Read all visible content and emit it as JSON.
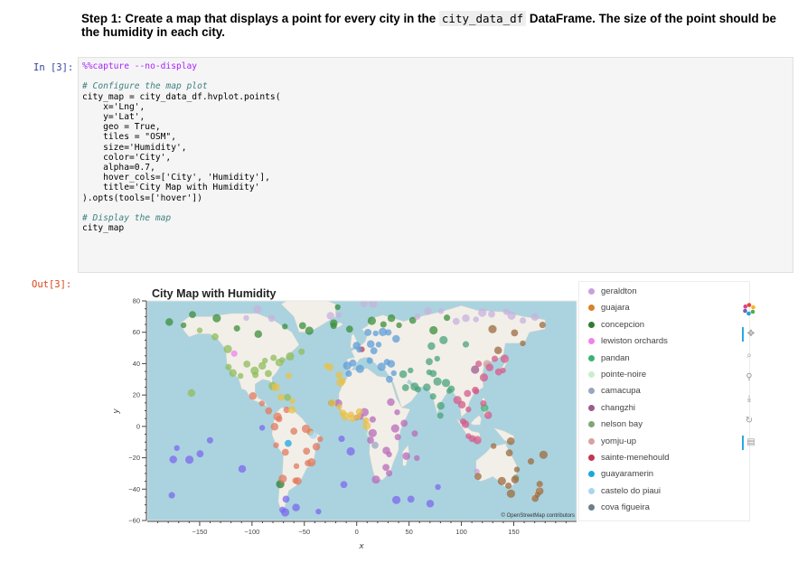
{
  "markdown": {
    "text_before": "Step 1: Create a map that displays a point for every city in the ",
    "code": "city_data_df",
    "text_after": " DataFrame. The size of the point should be the humidity in each city."
  },
  "input_prompt": "In [3]:",
  "output_prompt": "Out[3]:",
  "code_lines": {
    "l1": "%%capture --no-display",
    "l3": "# Configure the map plot",
    "l4": "city_map = city_data_df.hvplot.points(",
    "l5": "    x='Lng',",
    "l6": "    y='Lat',",
    "l7": "    geo = True,",
    "l8": "    tiles = \"OSM\",",
    "l9": "    size='Humidity',",
    "l10": "    color='City',",
    "l11": "    alpha=0.7,",
    "l12": "    hover_cols=['City', 'Humidity'],",
    "l13": "    title='City Map with Humidity'",
    "l14": ").opts(tools=['hover'])",
    "l16": "# Display the map",
    "l17": "city_map"
  },
  "chart_data": {
    "type": "scatter",
    "title": "City Map with Humidity",
    "xlabel": "x",
    "ylabel": "y",
    "xlim": [
      -200,
      210
    ],
    "ylim": [
      -60,
      80
    ],
    "xticks": [
      -150,
      -100,
      -50,
      0,
      50,
      100,
      150
    ],
    "yticks": [
      -60,
      -40,
      -20,
      0,
      20,
      40,
      60,
      80
    ],
    "attribution": "© OpenStreetMap contributors",
    "legend_position": "right",
    "grid": false,
    "series": [
      {
        "name": "geraldton",
        "color": "#c9a0dc",
        "points": [
          [
            114.6,
            -28.8
          ]
        ]
      },
      {
        "name": "guajara",
        "color": "#d9822b",
        "points": [
          [
            -44.3,
            -3.6
          ]
        ]
      },
      {
        "name": "concepcion",
        "color": "#2e7d32",
        "points": [
          [
            -73.0,
            -36.8
          ]
        ]
      },
      {
        "name": "lewiston orchards",
        "color": "#ee82ee",
        "points": [
          [
            -117.0,
            46.4
          ]
        ]
      },
      {
        "name": "pandan",
        "color": "#3cb371",
        "points": [
          [
            122.1,
            11.7
          ]
        ]
      },
      {
        "name": "pointe-noire",
        "color": "#c8f0c8",
        "points": [
          [
            11.9,
            -4.8
          ]
        ]
      },
      {
        "name": "camacupa",
        "color": "#9aa5c4",
        "points": [
          [
            17.5,
            -12.0
          ]
        ]
      },
      {
        "name": "changzhi",
        "color": "#a05a8c",
        "points": [
          [
            113.1,
            36.2
          ]
        ]
      },
      {
        "name": "nelson bay",
        "color": "#7fa774",
        "points": [
          [
            152.1,
            -32.7
          ]
        ]
      },
      {
        "name": "yomju-up",
        "color": "#d4a3a3",
        "points": [
          [
            124.5,
            39.9
          ]
        ]
      },
      {
        "name": "sainte-menehould",
        "color": "#c0384f",
        "points": [
          [
            4.9,
            49.1
          ]
        ]
      },
      {
        "name": "guayaramerin",
        "color": "#1ea7e0",
        "points": [
          [
            -65.4,
            -10.8
          ]
        ]
      },
      {
        "name": "castelo do piaui",
        "color": "#a9d6ef",
        "points": [
          [
            -41.6,
            -5.3
          ]
        ]
      },
      {
        "name": "cova figueira",
        "color": "#6b7f8c",
        "points": [
          [
            -24.3,
            14.9
          ]
        ]
      },
      {
        "name": "",
        "color": "#8fbc5a",
        "points": [
          [
            -157.8,
            21.3
          ],
          [
            -149.9,
            61.2
          ],
          [
            -135.3,
            57.1
          ],
          [
            -123.1,
            49.3
          ],
          [
            -122.4,
            37.8
          ],
          [
            -118.2,
            34.1
          ],
          [
            -110.9,
            32.2
          ],
          [
            -104.9,
            39.7
          ],
          [
            -97.5,
            35.5
          ],
          [
            -96.8,
            32.8
          ],
          [
            -90.2,
            38.6
          ],
          [
            -87.6,
            41.9
          ],
          [
            -84.4,
            33.7
          ],
          [
            -80.2,
            25.8
          ],
          [
            -79.4,
            43.7
          ],
          [
            -74.0,
            40.7
          ],
          [
            -71.1,
            42.4
          ],
          [
            -66.1,
            18.5
          ],
          [
            -63.6,
            44.6
          ],
          [
            -52.7,
            47.6
          ]
        ]
      },
      {
        "name": "",
        "color": "#e07a5f",
        "points": [
          [
            -99.1,
            19.4
          ],
          [
            -90.5,
            14.6
          ],
          [
            -84.1,
            9.9
          ],
          [
            -75.6,
            6.2
          ],
          [
            -74.1,
            4.7
          ],
          [
            -78.5,
            -0.2
          ],
          [
            -77.0,
            -12.0
          ],
          [
            -68.1,
            -16.5
          ],
          [
            -70.7,
            -33.4
          ],
          [
            -58.4,
            -34.6
          ],
          [
            -56.2,
            -34.9
          ],
          [
            -57.6,
            -25.3
          ],
          [
            -47.9,
            -15.8
          ],
          [
            -43.2,
            -22.9
          ],
          [
            -46.6,
            -23.5
          ],
          [
            -38.5,
            -13.0
          ],
          [
            -34.9,
            -8.1
          ],
          [
            -60.0,
            -3.1
          ],
          [
            -48.5,
            -1.5
          ],
          [
            -66.9,
            10.5
          ]
        ]
      },
      {
        "name": "",
        "color": "#5d9ed6",
        "points": [
          [
            -0.1,
            51.5
          ],
          [
            2.35,
            48.9
          ],
          [
            -3.7,
            40.4
          ],
          [
            -9.1,
            38.7
          ],
          [
            12.5,
            41.9
          ],
          [
            13.4,
            52.5
          ],
          [
            18.1,
            59.3
          ],
          [
            10.8,
            59.9
          ],
          [
            24.9,
            60.2
          ],
          [
            30.3,
            59.9
          ],
          [
            37.6,
            55.8
          ],
          [
            21.0,
            52.2
          ],
          [
            16.4,
            48.2
          ],
          [
            23.7,
            37.98
          ],
          [
            28.9,
            41.0
          ],
          [
            32.9,
            39.9
          ],
          [
            35.5,
            33.9
          ],
          [
            31.2,
            30.0
          ],
          [
            3.1,
            36.7
          ],
          [
            -7.6,
            33.6
          ]
        ]
      },
      {
        "name": "",
        "color": "#b86bb8",
        "points": [
          [
            -17.4,
            14.7
          ],
          [
            -0.2,
            5.6
          ],
          [
            3.4,
            6.5
          ],
          [
            7.5,
            9.1
          ],
          [
            15.3,
            4.4
          ],
          [
            32.6,
            15.5
          ],
          [
            38.7,
            9.0
          ],
          [
            45.3,
            2.0
          ],
          [
            36.8,
            -1.3
          ],
          [
            39.3,
            -6.8
          ],
          [
            28.3,
            -15.4
          ],
          [
            31.0,
            -17.8
          ],
          [
            28.0,
            -26.2
          ],
          [
            18.4,
            -33.9
          ],
          [
            31.0,
            -29.9
          ],
          [
            47.5,
            -18.9
          ],
          [
            57.5,
            -20.2
          ],
          [
            13.2,
            -8.8
          ],
          [
            15.3,
            -4.3
          ],
          [
            55.5,
            -4.6
          ]
        ]
      },
      {
        "name": "",
        "color": "#4aa37a",
        "points": [
          [
            44.4,
            33.3
          ],
          [
            51.4,
            35.7
          ],
          [
            46.7,
            24.7
          ],
          [
            55.3,
            25.3
          ],
          [
            58.4,
            23.6
          ],
          [
            67.0,
            24.9
          ],
          [
            69.2,
            34.5
          ],
          [
            73.0,
            33.7
          ],
          [
            77.2,
            28.6
          ],
          [
            72.9,
            19.1
          ],
          [
            80.3,
            13.1
          ],
          [
            88.4,
            22.6
          ],
          [
            90.4,
            23.8
          ],
          [
            85.3,
            27.7
          ],
          [
            79.9,
            6.9
          ],
          [
            71.4,
            51.2
          ],
          [
            76.9,
            43.2
          ],
          [
            69.3,
            41.3
          ],
          [
            82.9,
            55.0
          ],
          [
            104.3,
            52.3
          ]
        ]
      },
      {
        "name": "",
        "color": "#d45b8a",
        "points": [
          [
            100.5,
            13.8
          ],
          [
            106.7,
            10.8
          ],
          [
            105.8,
            21.0
          ],
          [
            96.2,
            16.8
          ],
          [
            101.7,
            3.1
          ],
          [
            103.8,
            1.35
          ],
          [
            106.8,
            -6.2
          ],
          [
            110.4,
            -7.8
          ],
          [
            115.2,
            -8.7
          ],
          [
            120.98,
            14.6
          ],
          [
            125.6,
            7.1
          ],
          [
            114.2,
            22.3
          ],
          [
            113.3,
            23.1
          ],
          [
            121.5,
            31.2
          ],
          [
            116.4,
            39.9
          ],
          [
            126.98,
            37.6
          ],
          [
            139.7,
            35.7
          ],
          [
            135.5,
            34.7
          ],
          [
            141.3,
            43.1
          ],
          [
            131.9,
            43.1
          ]
        ]
      },
      {
        "name": "",
        "color": "#9c6b3f",
        "points": [
          [
            135.1,
            48.5
          ],
          [
            158.6,
            53.0
          ],
          [
            150.8,
            59.6
          ],
          [
            129.7,
            62.0
          ],
          [
            177.5,
            64.7
          ],
          [
            147.2,
            -9.4
          ],
          [
            130.8,
            -12.5
          ],
          [
            115.9,
            -31.95
          ],
          [
            138.6,
            -34.9
          ],
          [
            144.96,
            -37.8
          ],
          [
            151.2,
            -33.9
          ],
          [
            153.0,
            -27.5
          ],
          [
            145.8,
            -16.9
          ],
          [
            147.3,
            -42.9
          ],
          [
            174.8,
            -36.8
          ],
          [
            174.8,
            -41.3
          ],
          [
            172.6,
            -43.5
          ],
          [
            170.5,
            -45.9
          ],
          [
            178.4,
            -18.1
          ],
          [
            166.4,
            -22.3
          ]
        ]
      },
      {
        "name": "",
        "color": "#7b68ee",
        "points": [
          [
            -175.2,
            -21.1
          ],
          [
            -171.8,
            -13.8
          ],
          [
            -149.6,
            -17.5
          ],
          [
            -159.8,
            -21.2
          ],
          [
            -140.1,
            -8.9
          ],
          [
            -109.4,
            -27.1
          ],
          [
            -90.3,
            -0.9
          ],
          [
            -67.5,
            -46.4
          ],
          [
            -68.3,
            -54.8
          ],
          [
            -70.9,
            -53.2
          ],
          [
            -57.9,
            -51.7
          ],
          [
            -36.5,
            -54.3
          ],
          [
            -12.3,
            -37.1
          ],
          [
            -5.7,
            -15.9
          ],
          [
            -14.4,
            -7.9
          ],
          [
            70.2,
            -49.3
          ],
          [
            77.6,
            -38.7
          ],
          [
            51.8,
            -46.4
          ],
          [
            37.9,
            -46.9
          ],
          [
            -176.6,
            -43.9
          ]
        ]
      },
      {
        "name": "",
        "color": "#3a8f3a",
        "points": [
          [
            -179.0,
            66.5
          ],
          [
            -165.4,
            64.5
          ],
          [
            -156.8,
            71.3
          ],
          [
            -133.7,
            69.0
          ],
          [
            -114.4,
            62.5
          ],
          [
            -94.0,
            58.8
          ],
          [
            -68.5,
            63.7
          ],
          [
            -51.7,
            64.2
          ],
          [
            -45.2,
            61.0
          ],
          [
            -22.0,
            64.1
          ],
          [
            -21.9,
            65.7
          ],
          [
            -18.1,
            76.0
          ],
          [
            -6.8,
            62.0
          ],
          [
            14.4,
            67.3
          ],
          [
            25.5,
            65.0
          ],
          [
            33.1,
            68.97
          ],
          [
            40.5,
            64.5
          ],
          [
            53.5,
            67.6
          ],
          [
            73.4,
            61.3
          ],
          [
            86.2,
            69.3
          ]
        ]
      },
      {
        "name": "",
        "color": "#c7b2de",
        "points": [
          [
            104.3,
            69.0
          ],
          [
            113.9,
            68.2
          ],
          [
            128.9,
            71.6
          ],
          [
            147.9,
            70.6
          ],
          [
            158.7,
            67.5
          ],
          [
            170.3,
            69.7
          ],
          [
            -105.5,
            69.1
          ],
          [
            -81.2,
            68.8
          ],
          [
            -94.8,
            74.7
          ],
          [
            -62.5,
            82.5
          ],
          [
            -25.0,
            70.5
          ],
          [
            -17.0,
            71.0
          ],
          [
            7.0,
            78.2
          ],
          [
            15.6,
            78.2
          ],
          [
            58.0,
            70.0
          ],
          [
            68.0,
            73.5
          ],
          [
            80.5,
            73.5
          ],
          [
            95.0,
            67.0
          ],
          [
            120.0,
            72.5
          ],
          [
            143.0,
            73.0
          ]
        ]
      },
      {
        "name": "",
        "color": "#e8c24a",
        "points": [
          [
            -61.7,
            10.6
          ],
          [
            -61.5,
            16.2
          ],
          [
            -72.3,
            18.5
          ],
          [
            -77.3,
            25.0
          ],
          [
            -64.8,
            32.3
          ],
          [
            -25.7,
            37.7
          ],
          [
            -28.6,
            38.5
          ],
          [
            -16.9,
            32.7
          ],
          [
            -15.4,
            28.1
          ],
          [
            -13.6,
            28.96
          ],
          [
            -23.5,
            14.9
          ],
          [
            -16.6,
            12.5
          ],
          [
            -13.2,
            8.5
          ],
          [
            -10.8,
            6.3
          ],
          [
            -5.5,
            7.5
          ],
          [
            -4.0,
            5.3
          ],
          [
            1.2,
            6.1
          ],
          [
            2.6,
            9.3
          ],
          [
            9.5,
            0.4
          ],
          [
            8.8,
            3.75
          ]
        ]
      }
    ]
  },
  "legend_items": [
    "geraldton",
    "guajara",
    "concepcion",
    "lewiston orchards",
    "pandan",
    "pointe-noire",
    "camacupa",
    "changzhi",
    "nelson bay",
    "yomju-up",
    "sainte-menehould",
    "guayaramerin",
    "castelo do piaui",
    "cova figueira"
  ],
  "toolbar": {
    "logo_icon": "bokeh-logo-icon",
    "tools": [
      "pan-icon",
      "box-zoom-icon",
      "wheel-zoom-icon",
      "save-icon",
      "reset-icon",
      "hover-icon"
    ]
  },
  "colors": {
    "ocean": "#aad3df",
    "land": "#f2efe9",
    "in_prompt": "#303f9f",
    "out_prompt": "#d84315",
    "toolbar_active": "#26aae1"
  }
}
